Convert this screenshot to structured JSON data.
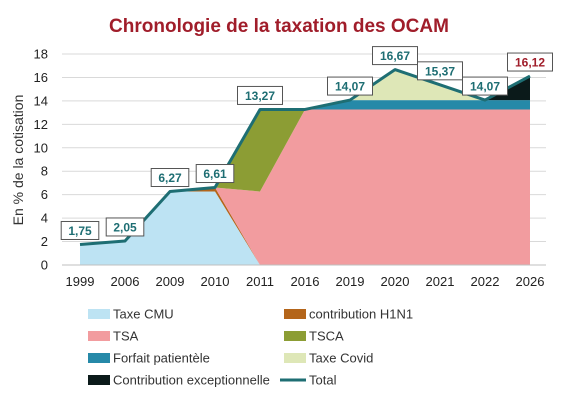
{
  "chart_data": {
    "type": "area",
    "title": "Chronologie de la taxation des OCAM",
    "ylabel": "En % de la cotisation",
    "xlabel": "",
    "ylim": [
      0,
      18
    ],
    "yticks": [
      0,
      2,
      4,
      6,
      8,
      10,
      12,
      14,
      16,
      18
    ],
    "grid": true,
    "legend_position": "bottom",
    "categories": [
      "1999",
      "2006",
      "2009",
      "2010",
      "2011",
      "2016",
      "2019",
      "2020",
      "2021",
      "2022",
      "2026"
    ],
    "series": [
      {
        "name": "Taxe CMU",
        "kind": "area",
        "color": "#BDE3F3",
        "values": [
          1.75,
          2.05,
          6.27,
          6.27,
          0,
          0,
          0,
          0,
          0,
          0,
          0
        ]
      },
      {
        "name": "contribution H1N1",
        "kind": "area",
        "color": "#B4651A",
        "values": [
          0,
          0,
          0,
          0.34,
          0,
          0,
          0,
          0,
          0,
          0,
          0
        ]
      },
      {
        "name": "TSA",
        "kind": "area",
        "color": "#F29C9F",
        "values": [
          0,
          0,
          0,
          0,
          6.27,
          13.27,
          13.27,
          13.27,
          13.27,
          13.27,
          13.27
        ]
      },
      {
        "name": "TSCA",
        "kind": "area",
        "color": "#8C9D34",
        "values": [
          0,
          0,
          0,
          0,
          7.0,
          0,
          0,
          0,
          0,
          0,
          0
        ]
      },
      {
        "name": "Forfait patientèle",
        "kind": "area",
        "color": "#2689A8",
        "values": [
          0,
          0,
          0,
          0,
          0,
          0,
          0.8,
          0.8,
          0.8,
          0.8,
          0.8
        ]
      },
      {
        "name": "Taxe Covid",
        "kind": "area",
        "color": "#DEE7B7",
        "values": [
          0,
          0,
          0,
          0,
          0,
          0,
          0,
          2.6,
          1.3,
          0,
          0
        ]
      },
      {
        "name": "Contribution exceptionnelle",
        "kind": "area",
        "color": "#0B1A1A",
        "values": [
          0,
          0,
          0,
          0,
          0,
          0,
          0,
          0,
          0,
          0,
          2.05
        ]
      },
      {
        "name": "Total",
        "kind": "line",
        "color": "#1E6E73",
        "values": [
          1.75,
          2.05,
          6.27,
          6.61,
          13.27,
          13.27,
          14.07,
          16.67,
          15.37,
          14.07,
          16.12
        ]
      }
    ],
    "data_labels": [
      "1,75",
      "2,05",
      "6,27",
      "6,61",
      "13,27",
      "",
      "14,07",
      "16,67",
      "15,37",
      "14,07",
      "16,12"
    ],
    "label_color": "#1E6E73",
    "highlight_label_color": "#A01D2A",
    "grid_color": "#D9D9D9"
  }
}
